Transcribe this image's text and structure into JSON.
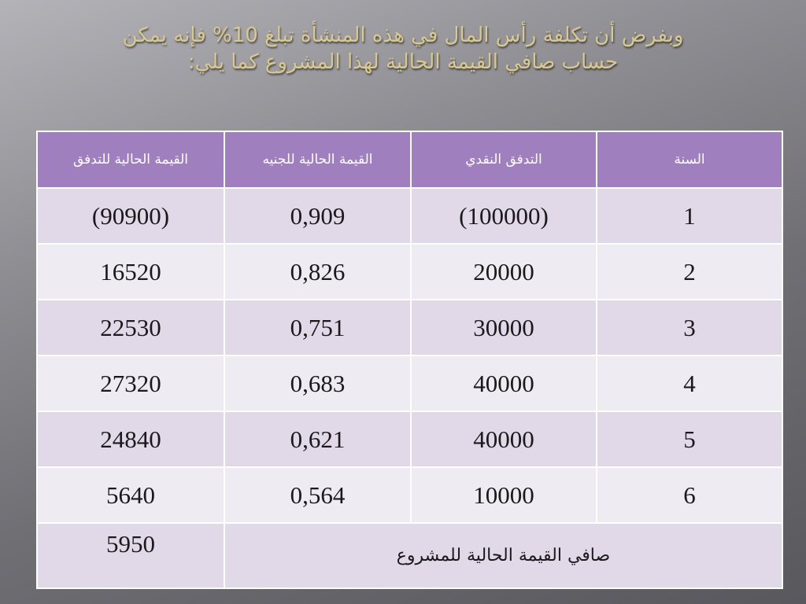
{
  "slide": {
    "title_line1": "وبفرض أن تكلفة رأس المال في هذه المنشأة تبلغ 10% فإنه يمكن",
    "title_line2": "حساب صافي القيمة الحالية لهذا المشروع كما يلي:"
  },
  "colors": {
    "header_bg": "#a07fbf",
    "row_odd": "#e1d9e8",
    "row_even": "#efebf2",
    "title_text": "#d9c98a"
  },
  "table": {
    "headers": [
      "السنة",
      "التدفق النقدي",
      "القيمة الحالية للجنيه",
      "القيمة الحالية للتدفق"
    ],
    "rows": [
      [
        "1",
        "(100000)",
        "0,909",
        "(90900)"
      ],
      [
        "2",
        "20000",
        "0,826",
        "16520"
      ],
      [
        "3",
        "30000",
        "0,751",
        "22530"
      ],
      [
        "4",
        "40000",
        "0,683",
        "27320"
      ],
      [
        "5",
        "40000",
        "0,621",
        "24840"
      ],
      [
        "6",
        "10000",
        "0,564",
        "5640"
      ]
    ],
    "total_label": "صافي القيمة الحالية للمشروع",
    "total_value": "5950"
  }
}
